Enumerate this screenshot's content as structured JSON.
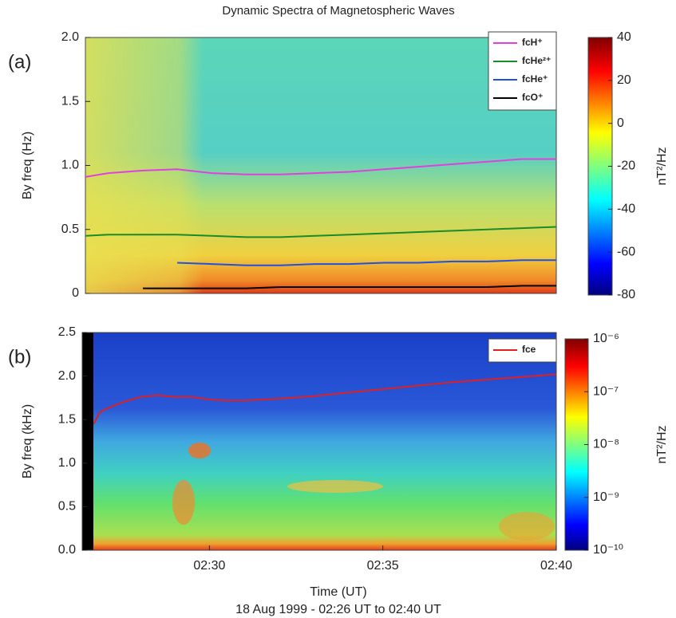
{
  "title": "Dynamic Spectra of Magnetospheric Waves",
  "xlabel": "Time (UT)",
  "footnote": "18 Aug 1999 - 02:26 UT to 02:40 UT",
  "chart_data": [
    {
      "type": "line",
      "panel_label": "(a)",
      "ylabel": "By freq (Hz)",
      "x": [
        "02:26:20",
        "02:27",
        "02:28",
        "02:29",
        "02:30",
        "02:31",
        "02:32",
        "02:33",
        "02:34",
        "02:35",
        "02:36",
        "02:37",
        "02:38",
        "02:39",
        "02:40"
      ],
      "xlim": [
        "02:26:20",
        "02:40"
      ],
      "ylim": [
        0,
        2
      ],
      "yticks": [
        0,
        0.5,
        {
          "value": 1,
          "label": "1.0"
        },
        1.5,
        {
          "value": 2,
          "label": "2.0"
        }
      ],
      "legend": "upper right",
      "series": [
        {
          "name": "fcH⁺",
          "color": "#e040e0",
          "values": [
            0.91,
            0.94,
            0.96,
            0.97,
            0.94,
            0.93,
            0.93,
            0.94,
            0.95,
            0.97,
            0.99,
            1.01,
            1.03,
            1.05,
            1.05
          ]
        },
        {
          "name": "fcHe²⁺",
          "color": "#1a8a2a",
          "values": [
            0.45,
            0.46,
            0.46,
            0.46,
            0.45,
            0.44,
            0.44,
            0.45,
            0.46,
            0.47,
            0.48,
            0.49,
            0.5,
            0.51,
            0.52
          ]
        },
        {
          "name": "fcHe⁺",
          "color": "#2050e0",
          "values": [
            null,
            null,
            null,
            0.24,
            0.23,
            0.22,
            0.22,
            0.23,
            0.23,
            0.24,
            0.24,
            0.25,
            0.25,
            0.26,
            0.26
          ]
        },
        {
          "name": "fcO⁺",
          "color": "#000000",
          "values": [
            null,
            null,
            0.04,
            0.04,
            0.04,
            0.04,
            0.05,
            0.05,
            0.05,
            0.05,
            0.05,
            0.05,
            0.05,
            0.06,
            0.06
          ]
        }
      ],
      "colorbar": {
        "label": "nT²/Hz",
        "clim": [
          -80,
          40
        ],
        "cticks": [
          40,
          20,
          0,
          -20,
          -40,
          -60,
          -80
        ],
        "log": false
      }
    },
    {
      "type": "line",
      "panel_label": "(b)",
      "ylabel": "By freq (kHz)",
      "x": [
        "02:26:40",
        "02:26:50",
        "02:27",
        "02:27:30",
        "02:28",
        "02:28:30",
        "02:29",
        "02:29:30",
        "02:30",
        "02:30:30",
        "02:31",
        "02:32",
        "02:33",
        "02:34",
        "02:35",
        "02:36",
        "02:37",
        "02:38",
        "02:39",
        "02:40"
      ],
      "xlim": [
        "02:26:20",
        "02:40"
      ],
      "xticks": [
        "02:30",
        "02:35",
        "02:40"
      ],
      "ylim": [
        0,
        2.5
      ],
      "yticks": [
        {
          "value": 0,
          "label": "0.0"
        },
        0.5,
        {
          "value": 1,
          "label": "1.0"
        },
        1.5,
        {
          "value": 2,
          "label": "2.0"
        },
        2.5
      ],
      "legend": "upper right",
      "series": [
        {
          "name": "fce",
          "color": "#e02020",
          "values": [
            1.45,
            1.58,
            1.62,
            1.7,
            1.76,
            1.78,
            1.76,
            1.76,
            1.73,
            1.72,
            1.72,
            1.74,
            1.77,
            1.81,
            1.85,
            1.89,
            1.93,
            1.96,
            1.99,
            2.02
          ]
        }
      ],
      "colorbar": {
        "label": "nT²/Hz",
        "clim": [
          1e-10,
          1e-06
        ],
        "log": true,
        "cticks": [
          {
            "value": 1e-06,
            "label": "10⁻⁶"
          },
          {
            "value": 1e-07,
            "label": "10⁻⁷"
          },
          {
            "value": 1e-08,
            "label": "10⁻⁸"
          },
          {
            "value": 1e-09,
            "label": "10⁻⁹"
          },
          {
            "value": 1e-10,
            "label": "10⁻¹⁰"
          }
        ]
      }
    }
  ]
}
